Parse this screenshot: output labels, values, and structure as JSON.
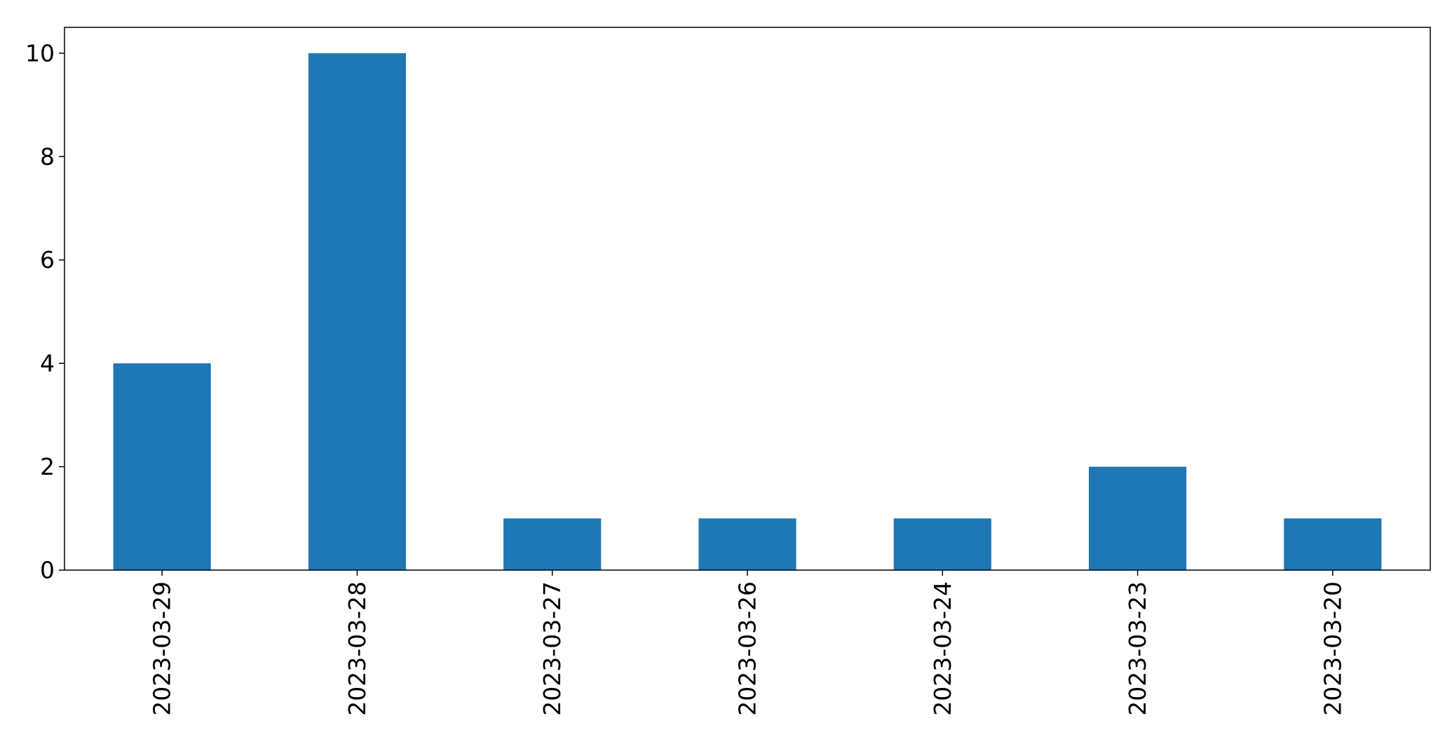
{
  "chart_data": {
    "type": "bar",
    "title": "",
    "xlabel": "",
    "ylabel": "",
    "categories": [
      "2023-03-29",
      "2023-03-28",
      "2023-03-27",
      "2023-03-26",
      "2023-03-24",
      "2023-03-23",
      "2023-03-20"
    ],
    "values": [
      4,
      10,
      1,
      1,
      1,
      2,
      1
    ],
    "ylim": [
      0,
      10.5
    ],
    "yticks": [
      0,
      2,
      4,
      6,
      8,
      10
    ],
    "grid": false,
    "legend": "none",
    "bar_color": "#1f77b4"
  }
}
